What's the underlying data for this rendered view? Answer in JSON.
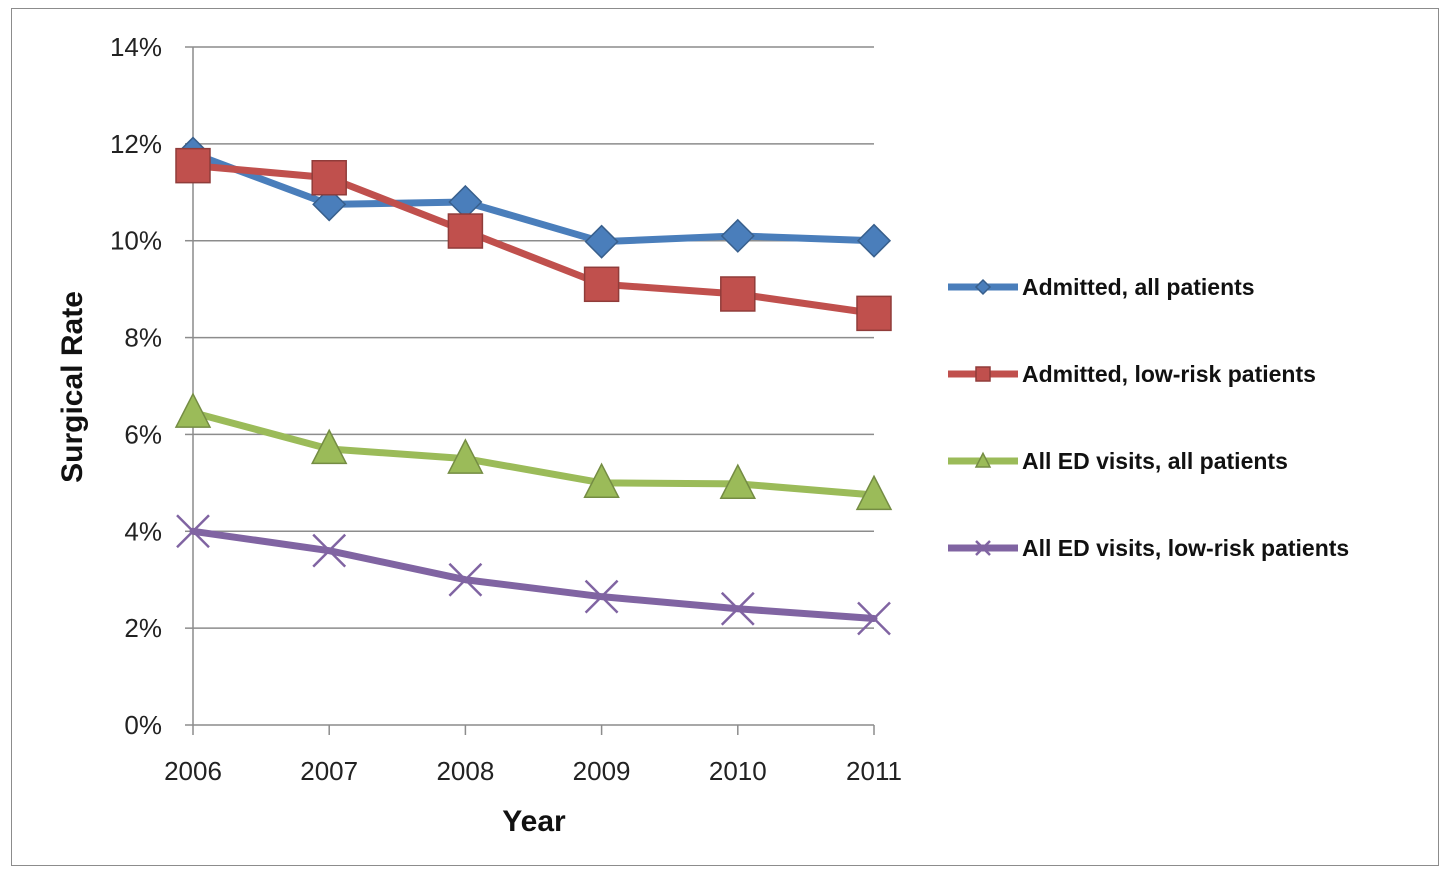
{
  "chart_data": {
    "type": "line",
    "title": "",
    "xlabel": "Year",
    "ylabel": "Surgical Rate",
    "x": [
      "2006",
      "2007",
      "2008",
      "2009",
      "2010",
      "2011"
    ],
    "ylim": [
      0,
      14
    ],
    "yticks": [
      0,
      2,
      4,
      6,
      8,
      10,
      12,
      14
    ],
    "ytick_labels": [
      "0%",
      "2%",
      "4%",
      "6%",
      "8%",
      "10%",
      "12%",
      "14%"
    ],
    "grid": "horizontal",
    "legend_position": "right",
    "series": [
      {
        "name": "Admitted, all patients",
        "color": "#4a7ebb",
        "marker": "diamond",
        "values": [
          11.8,
          10.75,
          10.8,
          9.98,
          10.1,
          10.0
        ]
      },
      {
        "name": "Admitted, low-risk patients",
        "color": "#c0504d",
        "marker": "square",
        "values": [
          11.55,
          11.3,
          10.2,
          9.1,
          8.9,
          8.5
        ]
      },
      {
        "name": "All ED visits, all patients",
        "color": "#9bbb59",
        "marker": "triangle",
        "values": [
          6.45,
          5.7,
          5.5,
          5.0,
          4.98,
          4.75
        ]
      },
      {
        "name": "All ED visits, low-risk patients",
        "color": "#8064a2",
        "marker": "x",
        "values": [
          4.0,
          3.6,
          3.0,
          2.65,
          2.4,
          2.2
        ]
      }
    ]
  }
}
